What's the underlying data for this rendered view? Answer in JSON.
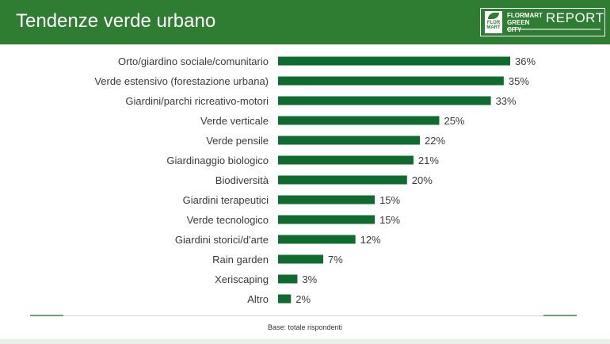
{
  "header": {
    "title": "Tendenze verde urbano",
    "logo": {
      "mark_text": "FLOR MART",
      "brand_line1": "FLORMART",
      "brand_line2": "GREEN CITY",
      "report": "REPORT"
    }
  },
  "colors": {
    "header_bg": "#2e7d32",
    "bar": "#0f6b2f"
  },
  "chart_data": {
    "type": "bar",
    "orientation": "horizontal",
    "categories": [
      "Orto/giardino sociale/comunitario",
      "Verde estensivo (forestazione urbana)",
      "Giardini/parchi ricreativo-motori",
      "Verde verticale",
      "Verde pensile",
      "Giardinaggio biologico",
      "Biodiversità",
      "Giardini terapeutici",
      "Verde tecnologico",
      "Giardini storici/d'arte",
      "Rain garden",
      "Xeriscaping",
      "Altro"
    ],
    "values": [
      36,
      35,
      33,
      25,
      22,
      21,
      20,
      15,
      15,
      12,
      7,
      3,
      2
    ],
    "value_labels": [
      "36%",
      "35%",
      "33%",
      "25%",
      "22%",
      "21%",
      "20%",
      "15%",
      "15%",
      "12%",
      "7%",
      "3%",
      "2%"
    ],
    "unit": "%",
    "xlim": [
      0,
      36
    ],
    "grid": false,
    "legend": "none"
  },
  "footnote": "Base: totale rispondenti"
}
